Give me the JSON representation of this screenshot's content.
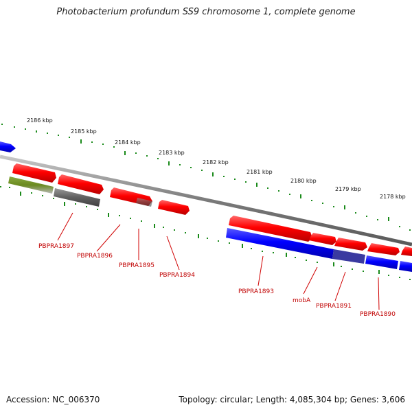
{
  "title": "Photobacterium profundum SS9 chromosome 1, complete genome",
  "accession_text": "Accession: NC_006370",
  "topology_text": "Topology: circular; Length: 4,085,304 bp; Genes: 3,606",
  "colors": {
    "forward_cds": "#ff0000",
    "reverse_cds": "#0000ff",
    "other_feature": "#606060",
    "rna_feature": "#6a8a20",
    "backbone": "#8a8a8a",
    "ticks": "#1a8a1a",
    "label": "#c00000"
  },
  "kbp_labels": [
    "2186 kbp",
    "2185 kbp",
    "2184 kbp",
    "2183 kbp",
    "2182 kbp",
    "2181 kbp",
    "2180 kbp",
    "2179 kbp",
    "2178 kbp"
  ],
  "gene_labels": [
    "PBPRA1897",
    "PBPRA1896",
    "PBPRA1895",
    "PBPRA1894",
    "PBPRA1893",
    "mobA",
    "PBPRA1891",
    "PBPRA1890"
  ]
}
